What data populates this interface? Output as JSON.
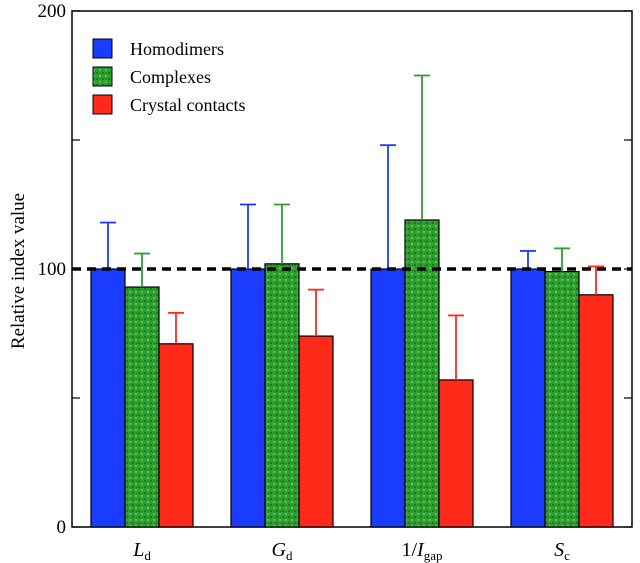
{
  "chart_data": {
    "type": "bar",
    "title": "",
    "xlabel": "",
    "ylabel": "Relative index value",
    "ylim": [
      0,
      200
    ],
    "yticks": [
      0,
      50,
      100,
      150,
      200
    ],
    "ytick_labels": [
      "0",
      "",
      "100",
      "",
      "200"
    ],
    "categories": [
      {
        "prefix": "",
        "main": "L",
        "sub": "d"
      },
      {
        "prefix": "",
        "main": "G",
        "sub": "d"
      },
      {
        "prefix": "1/",
        "main": "I",
        "sub": "gap"
      },
      {
        "prefix": "",
        "main": "S",
        "sub": "c"
      }
    ],
    "series": [
      {
        "name": "Homodimers",
        "color": "#1a3cff",
        "values": [
          100,
          100,
          100,
          100
        ],
        "errors": [
          18,
          25,
          48,
          7
        ]
      },
      {
        "name": "Complexes",
        "color": "#2e9e2e",
        "values": [
          93,
          102,
          119,
          99
        ],
        "errors": [
          13,
          23,
          56,
          9
        ]
      },
      {
        "name": "Crystal contacts",
        "color": "#ff2a1a",
        "values": [
          71,
          74,
          57,
          90
        ],
        "errors": [
          12,
          18,
          25,
          11
        ]
      }
    ],
    "reference_line": {
      "value": 100,
      "style": "dashed"
    },
    "legend_position": "top-left",
    "grid": false
  }
}
